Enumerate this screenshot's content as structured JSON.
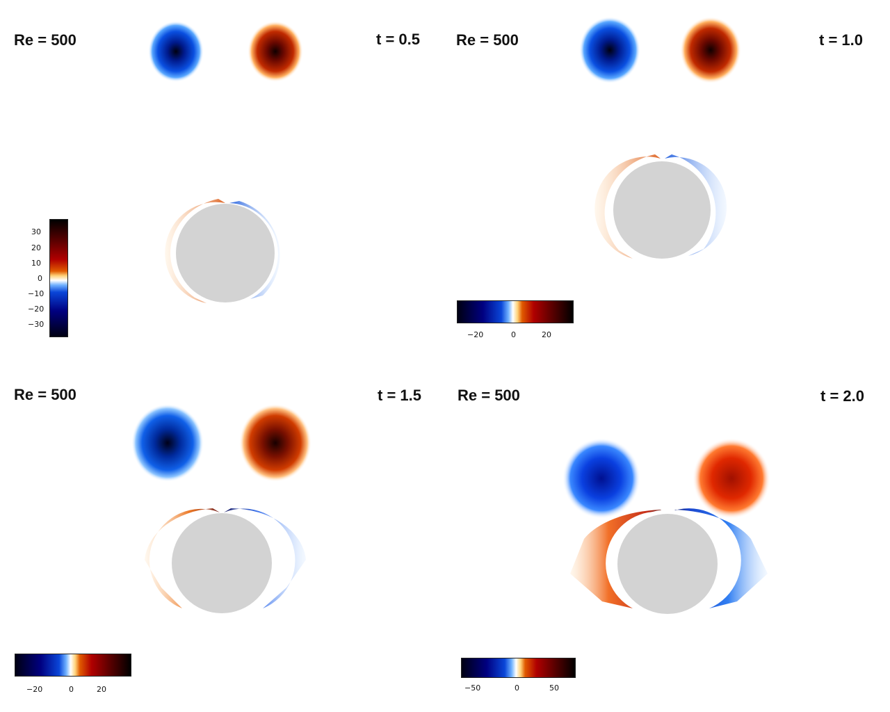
{
  "panels": [
    {
      "re_label": "Re = 500",
      "time_label": "t = 0.5",
      "colorbar": {
        "orientation": "vertical",
        "ticks": [
          "30",
          "20",
          "10",
          "0",
          "−10",
          "−20",
          "−30"
        ],
        "range": [
          -38,
          38
        ]
      }
    },
    {
      "re_label": "Re = 500",
      "time_label": "t = 1.0",
      "colorbar": {
        "orientation": "horizontal",
        "ticks": [
          "−20",
          "0",
          "20"
        ],
        "range": [
          -35,
          35
        ]
      }
    },
    {
      "re_label": "Re = 500",
      "time_label": "t = 1.5",
      "colorbar": {
        "orientation": "horizontal",
        "ticks": [
          "−20",
          "0",
          "20"
        ],
        "range": [
          -35,
          35
        ]
      }
    },
    {
      "re_label": "Re = 500",
      "time_label": "t = 2.0",
      "colorbar": {
        "orientation": "horizontal",
        "ticks": [
          "−50",
          "0",
          "50"
        ],
        "range": [
          -70,
          70
        ]
      }
    }
  ],
  "colors": {
    "cylinder": "#d3d3d3",
    "negative_vorticity": "#0033cc",
    "positive_vorticity": "#b01000",
    "background": "#ffffff"
  }
}
